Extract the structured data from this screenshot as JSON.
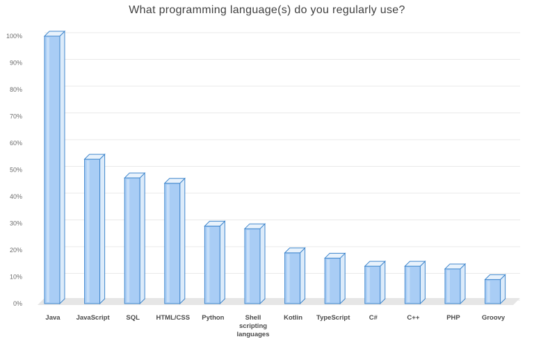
{
  "chart_data": {
    "type": "bar",
    "title": "What programming language(s) do you regularly use?",
    "categories": [
      "Java",
      "JavaScript",
      "SQL",
      "HTML/CSS",
      "Python",
      "Shell scripting languages",
      "Kotlin",
      "TypeScript",
      "C#",
      "C++",
      "PHP",
      "Groovy"
    ],
    "category_label_lines": [
      [
        "Java"
      ],
      [
        "JavaScript"
      ],
      [
        "SQL"
      ],
      [
        "HTML/CSS"
      ],
      [
        "Python"
      ],
      [
        "Shell",
        "scripting",
        "languages"
      ],
      [
        "Kotlin"
      ],
      [
        "TypeScript"
      ],
      [
        "C#"
      ],
      [
        "C++"
      ],
      [
        "PHP"
      ],
      [
        "Groovy"
      ]
    ],
    "values": [
      100,
      54,
      47,
      45,
      29,
      28,
      19,
      17,
      14,
      14,
      13,
      9
    ],
    "ylim": [
      0,
      100
    ],
    "yticks": [
      0,
      10,
      20,
      30,
      40,
      50,
      60,
      70,
      80,
      90,
      100
    ],
    "ytick_labels": [
      "0%",
      "10%",
      "20%",
      "30%",
      "40%",
      "50%",
      "60%",
      "70%",
      "80%",
      "90%",
      "100%"
    ],
    "xlabel": "",
    "ylabel": "",
    "grid": true,
    "legend": "none",
    "style": "3d-column",
    "colors": {
      "bar_front": "#a9cdf5",
      "bar_side": "#dcebfa",
      "bar_top": "#e8f2fc",
      "bar_edge": "#3f86cc",
      "grid": "#e9e9e9",
      "floor": "#e6e6e6"
    }
  }
}
